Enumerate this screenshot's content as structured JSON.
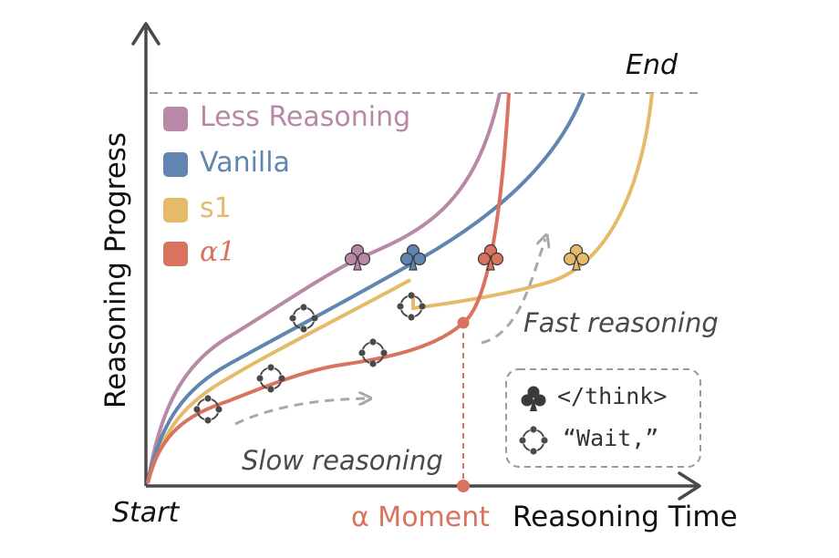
{
  "figure": {
    "y_axis_label": "Reasoning Progress",
    "x_axis_label": "Reasoning Time",
    "start_label": "Start",
    "end_label": "End",
    "alpha_moment_label": "α Moment",
    "slow_label": "Slow reasoning",
    "fast_label": "Fast reasoning"
  },
  "legend": [
    {
      "label": "Less Reasoning",
      "color": "#b889a6"
    },
    {
      "label": "Vanilla",
      "color": "#5f85b0"
    },
    {
      "label": "s1",
      "color": "#e5bb6a"
    },
    {
      "label": "α1",
      "color": "#d9735f"
    }
  ],
  "key_box": {
    "think_text": "</think>",
    "wait_text": "“Wait,”",
    "think_icon": "club-icon",
    "wait_icon": "cycle-icon"
  },
  "colors": {
    "axis": "#4a4a4a",
    "dashed_guide": "#9a9a9a",
    "icon_dark": "#4a4a4a"
  }
}
